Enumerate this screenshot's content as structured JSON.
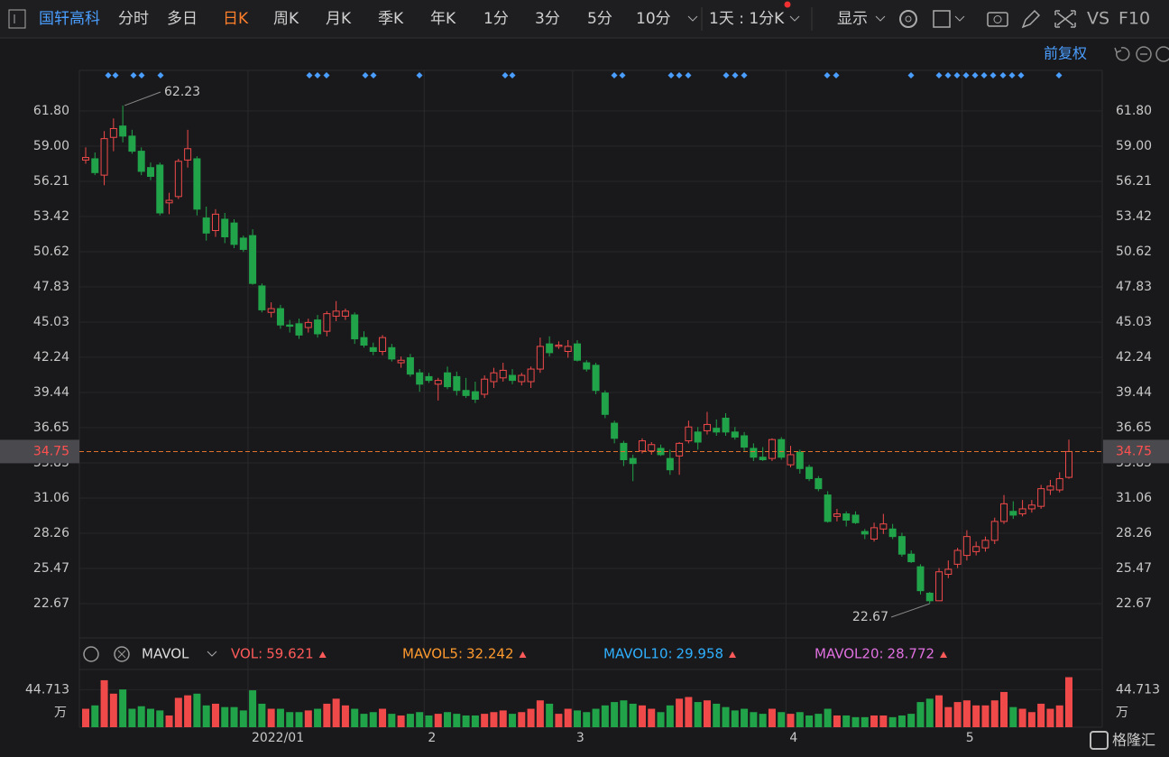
{
  "toolbar": {
    "stock": "国轩高科",
    "tabs": [
      "分时",
      "多日",
      "日K",
      "周K",
      "月K",
      "季K",
      "年K",
      "1分",
      "3分",
      "5分",
      "10分"
    ],
    "active_tab": "日K",
    "period": "1天 : 1分K",
    "display": "显示",
    "vs": "VS",
    "f10": "F10"
  },
  "adjust": "前复权",
  "watermark": "格隆汇",
  "chart_data": [
    {
      "type": "candlestick",
      "up_color": "#f0494a",
      "down_color": "#21a34a",
      "open": [
        57.9,
        58.0,
        56.7,
        59.7,
        60.6,
        59.8,
        58.6,
        57.3,
        57.5,
        54.5,
        55.0,
        57.9,
        58.0,
        53.3,
        52.3,
        53.2,
        52.9,
        51.7,
        51.9,
        47.9,
        45.8,
        46.1,
        44.8,
        44.9,
        44.6,
        45.2,
        44.3,
        45.5,
        45.5,
        45.6,
        43.8,
        43.0,
        42.7,
        43.0,
        41.8,
        42.2,
        41.0,
        40.7,
        40.1,
        41.0,
        40.7,
        39.6,
        39.5,
        39.3,
        40.3,
        40.6,
        40.8,
        40.3,
        40.3,
        41.3,
        43.3,
        43.1,
        42.7,
        43.3,
        41.8,
        41.6,
        39.4,
        37.0,
        35.4,
        34.2,
        34.8,
        34.8,
        35.0,
        34.2,
        34.4,
        35.6,
        36.3,
        36.4,
        36.6,
        37.4,
        36.3,
        36.0,
        35.0,
        34.3,
        34.2,
        35.7,
        33.7,
        34.7,
        33.5,
        32.6,
        31.3,
        29.6,
        29.8,
        29.7,
        28.4,
        27.8,
        28.6,
        28.6,
        28.0,
        26.6,
        25.6,
        23.5,
        22.9,
        25.0,
        25.8,
        26.5,
        26.8,
        27.1,
        27.7,
        29.2,
        30.0,
        29.8,
        30.2,
        30.4,
        31.7,
        31.7,
        32.7
      ],
      "high": [
        58.9,
        58.5,
        60.2,
        61.2,
        62.23,
        60.3,
        58.9,
        57.7,
        57.7,
        55.3,
        58.0,
        60.3,
        58.2,
        54.2,
        54.0,
        53.7,
        53.2,
        51.9,
        52.4,
        48.1,
        46.6,
        46.4,
        45.2,
        45.3,
        45.3,
        45.6,
        45.9,
        46.7,
        46.1,
        45.8,
        44.3,
        43.4,
        44.0,
        43.3,
        42.3,
        42.5,
        41.3,
        41.0,
        40.6,
        41.5,
        41.1,
        40.6,
        40.3,
        40.8,
        41.4,
        41.8,
        41.3,
        41.0,
        41.5,
        43.8,
        43.9,
        43.5,
        43.6,
        43.6,
        42.0,
        41.8,
        39.6,
        37.2,
        35.6,
        34.5,
        35.8,
        35.5,
        35.3,
        34.9,
        35.5,
        37.2,
        36.7,
        37.9,
        37.3,
        37.8,
        36.7,
        36.3,
        35.4,
        35.1,
        35.8,
        35.9,
        35.2,
        34.9,
        33.7,
        32.8,
        31.6,
        30.2,
        30.0,
        30.0,
        28.6,
        29.1,
        29.8,
        29.0,
        28.3,
        26.9,
        25.8,
        23.6,
        25.5,
        26.1,
        27.1,
        28.5,
        27.6,
        28.0,
        29.5,
        31.3,
        30.8,
        30.9,
        30.9,
        32.1,
        32.5,
        33.1,
        35.7
      ],
      "low": [
        57.6,
        56.7,
        55.9,
        58.6,
        59.3,
        58.4,
        56.7,
        56.3,
        53.5,
        53.6,
        54.8,
        57.3,
        53.5,
        51.5,
        51.8,
        51.3,
        50.9,
        50.6,
        48.0,
        45.8,
        45.4,
        44.5,
        44.2,
        43.7,
        44.2,
        43.8,
        43.9,
        45.1,
        45.2,
        43.3,
        43.0,
        42.4,
        42.4,
        41.9,
        41.4,
        40.7,
        39.5,
        40.2,
        38.8,
        39.7,
        39.2,
        39.0,
        38.6,
        39.0,
        39.8,
        40.3,
        40.1,
        40.0,
        39.8,
        41.0,
        42.3,
        42.9,
        42.2,
        41.9,
        41.1,
        39.3,
        37.4,
        35.4,
        33.6,
        32.4,
        34.6,
        34.5,
        34.4,
        32.9,
        32.9,
        35.4,
        34.9,
        36.1,
        36.0,
        36.0,
        35.7,
        34.8,
        34.0,
        34.0,
        34.0,
        34.1,
        33.5,
        33.0,
        32.4,
        31.6,
        29.1,
        29.2,
        28.8,
        29.0,
        27.8,
        27.6,
        28.2,
        27.8,
        26.4,
        25.9,
        23.4,
        22.67,
        22.9,
        24.7,
        25.5,
        26.1,
        26.5,
        26.8,
        27.4,
        29.0,
        29.4,
        29.6,
        29.9,
        30.2,
        31.3,
        31.5,
        32.6
      ],
      "close": [
        58.1,
        56.9,
        59.6,
        60.4,
        59.8,
        58.6,
        57.0,
        56.6,
        53.7,
        54.7,
        57.8,
        58.8,
        54.0,
        52.1,
        53.6,
        51.8,
        51.2,
        50.8,
        48.1,
        46.0,
        46.1,
        44.8,
        44.7,
        44.0,
        45.0,
        44.1,
        45.7,
        45.9,
        45.9,
        43.7,
        43.2,
        42.7,
        43.8,
        42.1,
        42.0,
        40.9,
        40.1,
        40.4,
        40.4,
        39.9,
        39.6,
        39.2,
        38.9,
        40.5,
        41.0,
        41.2,
        40.4,
        40.8,
        41.3,
        43.1,
        42.6,
        43.2,
        43.1,
        42.0,
        41.3,
        39.6,
        37.7,
        35.8,
        34.1,
        33.8,
        35.6,
        35.3,
        34.5,
        33.3,
        35.4,
        36.7,
        35.5,
        36.9,
        36.3,
        36.3,
        35.9,
        35.1,
        34.3,
        34.1,
        35.7,
        34.3,
        34.5,
        33.4,
        32.6,
        31.8,
        29.2,
        29.8,
        29.3,
        29.1,
        28.2,
        28.7,
        29.0,
        28.0,
        26.6,
        26.0,
        23.7,
        22.9,
        25.2,
        25.4,
        26.9,
        28.0,
        27.2,
        27.7,
        29.2,
        30.6,
        29.7,
        30.2,
        30.5,
        31.8,
        32.0,
        32.6,
        34.75
      ],
      "ylim": [
        19.95,
        65.02
      ],
      "yticks": [
        {
          "value": 61.8,
          "label": "61.80"
        },
        {
          "value": 59,
          "label": "59.00"
        },
        56.21,
        53.42,
        50.62,
        47.83,
        45.03,
        42.24,
        39.44,
        36.65,
        33.85,
        31.06,
        28.26,
        25.47,
        22.67
      ],
      "grid": true
    },
    {
      "type": "bar",
      "indicator": "MAVOL",
      "legend": [
        {
          "label": "VOL:",
          "value": 59.621,
          "color": "#ff5a5a"
        },
        {
          "label": "MAVOL5:",
          "value": 32.242,
          "color": "#ff9a2e"
        },
        {
          "label": "MAVOL10:",
          "value": 29.958,
          "color": "#2fb0ff"
        },
        {
          "label": "MAVOL20:",
          "value": 28.772,
          "color": "#e070e0"
        }
      ],
      "categories": [
        null,
        null,
        null,
        null,
        null,
        null,
        null,
        null,
        null,
        null,
        null,
        null,
        null,
        null,
        null,
        null,
        null,
        null,
        "2022/01",
        null,
        null,
        null,
        null,
        null,
        null,
        null,
        null,
        null,
        null,
        null,
        null,
        null,
        null,
        null,
        null,
        null,
        null,
        "2",
        null,
        null,
        null,
        null,
        null,
        null,
        null,
        null,
        null,
        null,
        null,
        null,
        null,
        null,
        null,
        "3",
        null,
        null,
        null,
        null,
        null,
        null,
        null,
        null,
        null,
        null,
        null,
        null,
        null,
        null,
        null,
        null,
        null,
        null,
        null,
        null,
        null,
        null,
        "4",
        null,
        null,
        null,
        null,
        null,
        null,
        null,
        null,
        null,
        null,
        null,
        null,
        null,
        null,
        null,
        null,
        null,
        null,
        "5",
        null,
        null,
        null,
        null,
        null,
        null,
        null,
        null,
        null,
        null,
        null
      ],
      "values": [
        22,
        26,
        56,
        40,
        45,
        22,
        25,
        22,
        20,
        14,
        35,
        38,
        40,
        26,
        28,
        24,
        24,
        20,
        44,
        28,
        22,
        22,
        18,
        18,
        20,
        22,
        28,
        34,
        26,
        22,
        16,
        18,
        22,
        16,
        14,
        16,
        18,
        14,
        16,
        18,
        16,
        14,
        14,
        16,
        18,
        20,
        16,
        18,
        22,
        32,
        28,
        16,
        22,
        20,
        18,
        22,
        26,
        30,
        32,
        28,
        26,
        22,
        18,
        26,
        34,
        36,
        30,
        32,
        28,
        24,
        20,
        22,
        18,
        16,
        22,
        18,
        16,
        18,
        14,
        16,
        22,
        14,
        14,
        12,
        12,
        14,
        14,
        12,
        14,
        16,
        30,
        34,
        38,
        24,
        30,
        32,
        26,
        26,
        32,
        42,
        24,
        22,
        18,
        28,
        22,
        26,
        59.621
      ],
      "ylim": [
        0,
        68.8
      ],
      "yticks": [
        44.713
      ],
      "y_unit": "万"
    }
  ]
}
